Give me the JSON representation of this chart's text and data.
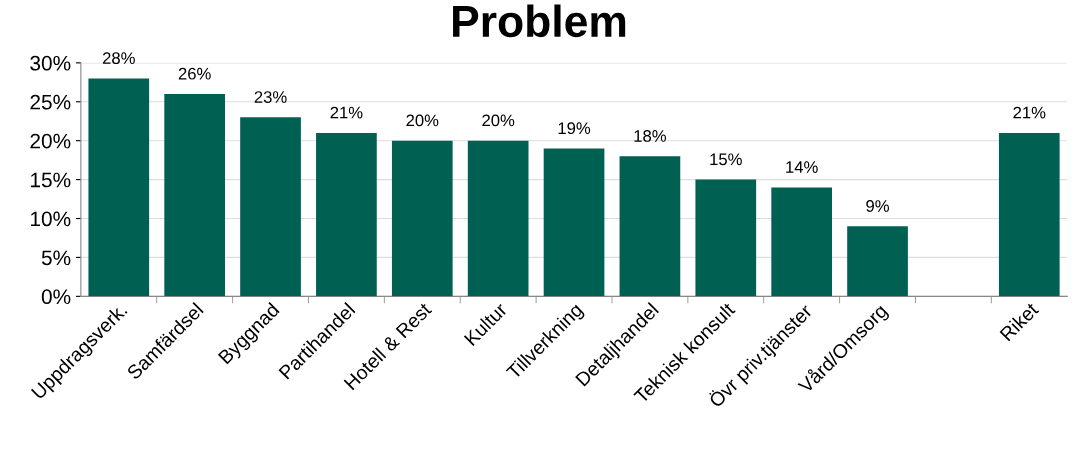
{
  "chart_data": {
    "type": "bar",
    "title": "Problem",
    "categories": [
      "Uppdragsverk.",
      "Samfärdsel",
      "Byggnad",
      "Partihandel",
      "Hotell & Rest",
      "Kultur",
      "Tillverkning",
      "Detaljhandel",
      "Teknisk konsult",
      "Övr priv.tjänster",
      "Vård/Omsorg",
      null,
      "Riket"
    ],
    "values": [
      28,
      26,
      23,
      21,
      20,
      20,
      19,
      18,
      15,
      14,
      9,
      null,
      21
    ],
    "value_labels": [
      "28%",
      "26%",
      "23%",
      "21%",
      "20%",
      "20%",
      "19%",
      "18%",
      "15%",
      "14%",
      "9%",
      null,
      "21%"
    ],
    "color": "#006152",
    "ylim": [
      0,
      30
    ],
    "yticks": [
      {
        "value": 0,
        "label": "0%"
      },
      {
        "value": 5,
        "label": "5%"
      },
      {
        "value": 10,
        "label": "10%"
      },
      {
        "value": 15,
        "label": "15%"
      },
      {
        "value": 20,
        "label": "20%"
      },
      {
        "value": 25,
        "label": "25%"
      },
      {
        "value": 30,
        "label": "30%"
      }
    ],
    "grid": "y",
    "legend": false
  }
}
